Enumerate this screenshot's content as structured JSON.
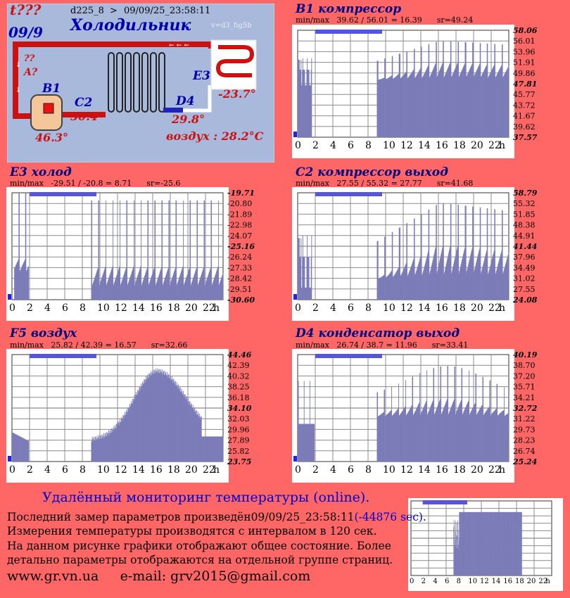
{
  "header": {
    "status_code": "t???",
    "date": "09/9",
    "device": "d225_8",
    "arrow": ">",
    "timestamp": "09/09/25_23:58:11",
    "title": "Холодильник",
    "version": "v=d3_fig5b"
  },
  "diagram": {
    "unknown_q": "??",
    "unknown_a": "A?",
    "b1_label": "B1",
    "b1_temp": "46.3°",
    "c2_label": "C2",
    "c2_temp": "30.4°",
    "d4_label": "D4",
    "d4_temp": "29.8°",
    "e3_label": "E3",
    "e3_temp": "-23.7°",
    "air": "воздух : 28.2°C"
  },
  "chart_data": [
    {
      "type": "bar",
      "id": "b1",
      "title": "B1 компрессор",
      "stats": "min/max   39.62 / 56.01 = 16.39      sr=49.24",
      "ylim": [
        37.57,
        58.06
      ],
      "yticks": [
        "58.06",
        "56.01",
        "53.96",
        "51.91",
        "49.86",
        "47.81",
        "45.77",
        "43.72",
        "41.67",
        "39.62",
        "37.57"
      ],
      "ytick_bold": [
        0,
        5,
        10
      ],
      "xticks": [
        "0",
        "2",
        "4",
        "6",
        "8",
        "10",
        "12",
        "14",
        "16",
        "18",
        "20",
        "22",
        "h"
      ],
      "profile": "compressor",
      "params": {
        "base_on": 48.6,
        "peak_on": 56.0,
        "floor": 47.5,
        "early": 50.5,
        "late": 52.0
      }
    },
    {
      "type": "bar",
      "id": "e3",
      "title": "E3 холод",
      "stats": "min/max   -29.51 / -20.8 = 8.71      sr=-25.6",
      "ylim": [
        -30.6,
        -19.71
      ],
      "yticks": [
        "-19.71",
        "-20.80",
        "-21.89",
        "-22.98",
        "-24.07",
        "-25.16",
        "-26.24",
        "-27.33",
        "-28.42",
        "-29.51",
        "-30.60"
      ],
      "ytick_bold": [
        0,
        5,
        10
      ],
      "xticks": [
        "0",
        "2",
        "4",
        "6",
        "8",
        "10",
        "12",
        "14",
        "16",
        "18",
        "20",
        "22",
        "h"
      ],
      "profile": "cold",
      "params": {
        "peak": -20.8,
        "floor": -29.4
      }
    },
    {
      "type": "bar",
      "id": "c2",
      "title": "C2 компрессор выход",
      "stats": "min/max   27.55 / 55.32 = 27.77      sr=41.68",
      "ylim": [
        24.08,
        58.79
      ],
      "yticks": [
        "58.79",
        "55.32",
        "51.85",
        "48.38",
        "44.91",
        "41.44",
        "37.96",
        "34.49",
        "31.02",
        "27.55",
        "24.08"
      ],
      "ytick_bold": [
        0,
        5,
        10
      ],
      "xticks": [
        "0",
        "2",
        "4",
        "6",
        "8",
        "10",
        "12",
        "14",
        "16",
        "18",
        "20",
        "22",
        "h"
      ],
      "profile": "compressor",
      "params": {
        "base_on": 31.0,
        "peak_on": 55.3,
        "floor": 28.0,
        "early": 38.0,
        "late": 42.0
      }
    },
    {
      "type": "area",
      "id": "f5",
      "title": "F5 воздух",
      "stats": "min/max   25.82 / 42.39 = 16.57      sr=32.66",
      "ylim": [
        23.75,
        44.46
      ],
      "yticks": [
        "44.46",
        "42.39",
        "40.32",
        "38.25",
        "36.18",
        "34.10",
        "32.03",
        "29.96",
        "27.89",
        "25.82",
        "23.75"
      ],
      "ytick_bold": [
        0,
        5,
        10
      ],
      "xticks": [
        "0",
        "2",
        "4",
        "6",
        "8",
        "10",
        "12",
        "14",
        "16",
        "18",
        "20",
        "22",
        "h"
      ],
      "profile": "air",
      "params": {}
    },
    {
      "type": "bar",
      "id": "d4",
      "title": "D4 конденсатор выход",
      "stats": "min/max   26.74 / 38.7 = 11.96      sr=33.41",
      "ylim": [
        25.24,
        40.19
      ],
      "yticks": [
        "40.19",
        "38.70",
        "37.20",
        "35.71",
        "34.21",
        "32.72",
        "31.22",
        "29.73",
        "28.23",
        "26.74",
        "25.24"
      ],
      "ytick_bold": [
        0,
        5,
        10
      ],
      "xticks": [
        "0",
        "2",
        "4",
        "6",
        "8",
        "10",
        "12",
        "14",
        "16",
        "18",
        "20",
        "22",
        "h"
      ],
      "profile": "condenser",
      "params": {}
    },
    {
      "type": "area",
      "id": "mini",
      "title": "",
      "stats": "",
      "ylim": [
        0,
        1
      ],
      "yticks": [],
      "ytick_bold": [],
      "xticks": [
        "0",
        "2",
        "4",
        "6",
        "8",
        "10",
        "12",
        "14",
        "16",
        "18",
        "20",
        "22",
        "h"
      ],
      "profile": "mini",
      "params": {}
    }
  ],
  "footer": {
    "title": "Удалённый мониторинг температуры (online).",
    "last_measure_prefix": "Последний замер параметров произведён",
    "last_measure_time": "09/09/25_23:58:11",
    "last_measure_delta": "(-44876 sec).",
    "interval": "Измерения температуры  производятся с интервалом в 120 сек.",
    "note1": "На данном рисунке графики отображают общее состояние. Более",
    "note2": "детально параметры отображаются на отдельной группе страниц.",
    "website": "www.gr.vn.ua",
    "email": "e-mail: grv2015@gmail.com"
  },
  "colors": {
    "background": "#ff6666",
    "plot": "#7b7bb8",
    "grid": "#8c8c8c",
    "accent": "#4444ee",
    "title": "#000080",
    "diagram_bg": "#a9b9dc"
  }
}
